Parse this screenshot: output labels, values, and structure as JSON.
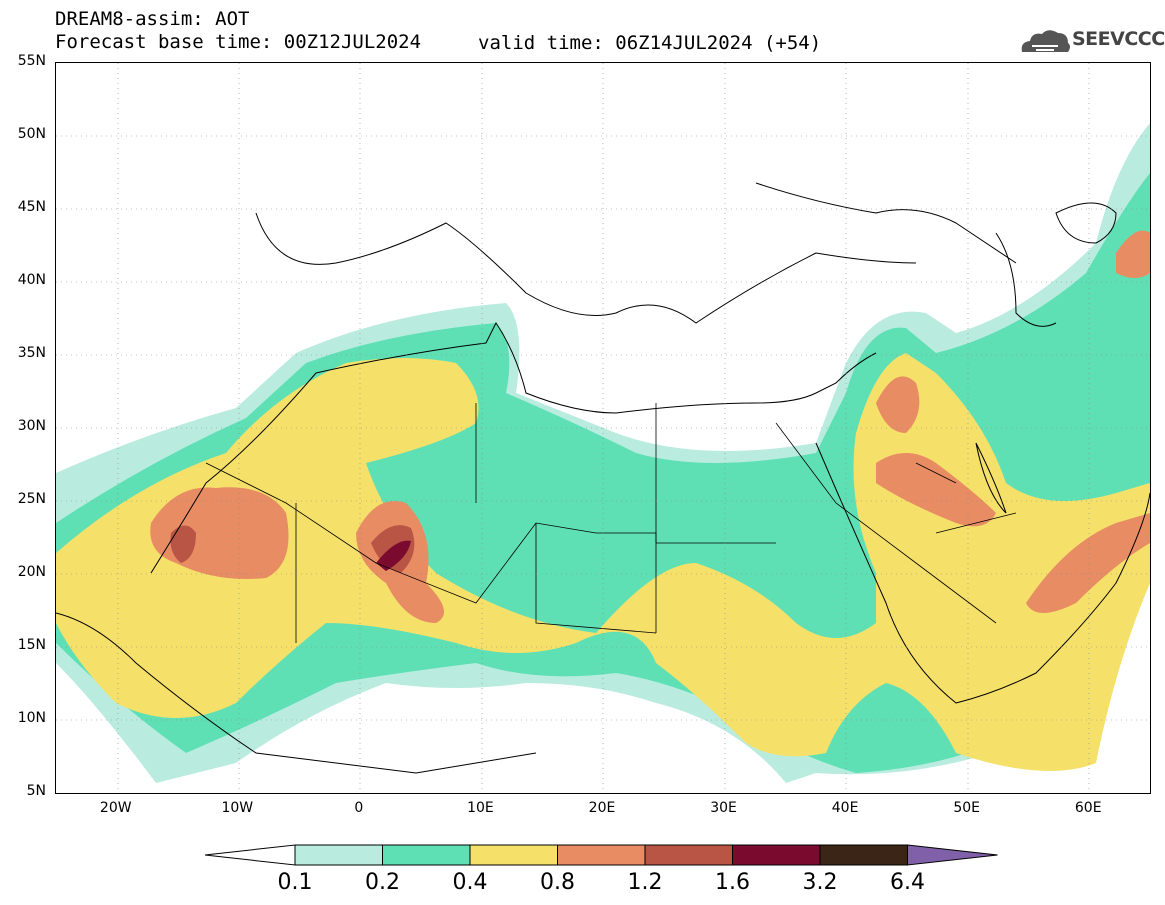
{
  "header": {
    "title_line1": "DREAM8-assim: AOT",
    "base_time": "Forecast base time: 00Z12JUL2024",
    "valid_time": "valid time: 06Z14JUL2024 (+54)"
  },
  "logo": {
    "text": "SEEVCCC",
    "icon": "cloud-logo-icon"
  },
  "map": {
    "lon_range": [
      -25,
      65
    ],
    "lat_range": [
      5,
      55
    ],
    "lat_labels": [
      "55N",
      "50N",
      "45N",
      "40N",
      "35N",
      "30N",
      "25N",
      "20N",
      "15N",
      "10N",
      "5N"
    ],
    "lon_labels": [
      "20W",
      "10W",
      "0",
      "10E",
      "20E",
      "30E",
      "40E",
      "50E",
      "60E"
    ]
  },
  "colorbar": {
    "labels": [
      "0.1",
      "0.2",
      "0.4",
      "0.8",
      "1.2",
      "1.6",
      "3.2",
      "6.4"
    ],
    "colors": [
      "#ffffff",
      "#b9ecdf",
      "#5fe0b4",
      "#f5e06a",
      "#e88c64",
      "#b95545",
      "#7a0a2e",
      "#3a2516",
      "#8060a8"
    ]
  }
}
